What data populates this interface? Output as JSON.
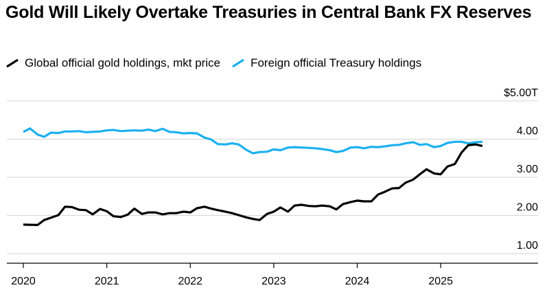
{
  "chart_data": {
    "type": "line",
    "title": "Gold Will Likely Overtake Treasuries in Central Bank FX Reserves",
    "xlabel": "",
    "ylabel": "",
    "x_ticks": [
      "2020",
      "2021",
      "2022",
      "2023",
      "2024",
      "2025"
    ],
    "y_ticks": [
      {
        "value": 5,
        "label": "$5.00T"
      },
      {
        "value": 4,
        "label": "4.00"
      },
      {
        "value": 3,
        "label": "3.00"
      },
      {
        "value": 2,
        "label": "2.00"
      },
      {
        "value": 1,
        "label": "1.00"
      }
    ],
    "xlim": [
      2020.0,
      2026.1
    ],
    "ylim": [
      0.75,
      5.25
    ],
    "grid": true,
    "legend_position": "top-left",
    "series": [
      {
        "name": "Global official gold holdings, mkt price",
        "color": "#000000",
        "x": [
          2020.0,
          2020.17,
          2020.25,
          2020.33,
          2020.42,
          2020.5,
          2020.58,
          2020.67,
          2020.75,
          2020.83,
          2020.92,
          2021.0,
          2021.08,
          2021.17,
          2021.25,
          2021.33,
          2021.42,
          2021.5,
          2021.58,
          2021.67,
          2021.75,
          2021.83,
          2021.92,
          2022.0,
          2022.08,
          2022.17,
          2022.25,
          2022.33,
          2022.42,
          2022.5,
          2022.58,
          2022.67,
          2022.75,
          2022.83,
          2022.92,
          2023.0,
          2023.08,
          2023.17,
          2023.25,
          2023.33,
          2023.42,
          2023.5,
          2023.58,
          2023.67,
          2023.75,
          2023.83,
          2023.92,
          2024.0,
          2024.08,
          2024.17,
          2024.25,
          2024.33,
          2024.42,
          2024.5,
          2024.58,
          2024.67,
          2024.75,
          2024.83,
          2024.92,
          2025.0,
          2025.08,
          2025.17,
          2025.25,
          2025.33,
          2025.42,
          2025.5
        ],
        "values": [
          1.76,
          1.75,
          1.88,
          1.94,
          2.01,
          2.23,
          2.22,
          2.15,
          2.14,
          2.03,
          2.17,
          2.11,
          1.98,
          1.96,
          2.02,
          2.18,
          2.04,
          2.08,
          2.08,
          2.03,
          2.06,
          2.06,
          2.1,
          2.08,
          2.19,
          2.23,
          2.18,
          2.14,
          2.1,
          2.06,
          2.01,
          1.95,
          1.91,
          1.88,
          2.04,
          2.1,
          2.21,
          2.1,
          2.26,
          2.28,
          2.25,
          2.24,
          2.26,
          2.24,
          2.16,
          2.3,
          2.35,
          2.39,
          2.37,
          2.37,
          2.55,
          2.62,
          2.71,
          2.72,
          2.86,
          2.94,
          3.08,
          3.21,
          3.1,
          3.08,
          3.28,
          3.35,
          3.65,
          3.84,
          3.86,
          3.82
        ]
      },
      {
        "name": "Foreign official Treasury holdings",
        "color": "#1bb0f1",
        "x": [
          2020.0,
          2020.08,
          2020.17,
          2020.25,
          2020.33,
          2020.42,
          2020.5,
          2020.58,
          2020.67,
          2020.75,
          2020.83,
          2020.92,
          2021.0,
          2021.08,
          2021.17,
          2021.25,
          2021.33,
          2021.42,
          2021.5,
          2021.58,
          2021.67,
          2021.75,
          2021.83,
          2021.92,
          2022.0,
          2022.08,
          2022.17,
          2022.25,
          2022.33,
          2022.42,
          2022.5,
          2022.58,
          2022.67,
          2022.75,
          2022.83,
          2022.92,
          2023.0,
          2023.08,
          2023.17,
          2023.25,
          2023.33,
          2023.42,
          2023.5,
          2023.58,
          2023.67,
          2023.75,
          2023.83,
          2023.92,
          2024.0,
          2024.08,
          2024.17,
          2024.25,
          2024.33,
          2024.42,
          2024.5,
          2024.58,
          2024.67,
          2024.75,
          2024.83,
          2024.92,
          2025.0,
          2025.08,
          2025.17,
          2025.25,
          2025.33,
          2025.42,
          2025.5
        ],
        "values": [
          4.19,
          4.28,
          4.12,
          4.06,
          4.17,
          4.16,
          4.2,
          4.2,
          4.21,
          4.18,
          4.19,
          4.2,
          4.23,
          4.24,
          4.21,
          4.22,
          4.23,
          4.22,
          4.25,
          4.21,
          4.27,
          4.19,
          4.18,
          4.15,
          4.16,
          4.15,
          4.04,
          3.99,
          3.87,
          3.86,
          3.89,
          3.86,
          3.72,
          3.63,
          3.66,
          3.67,
          3.73,
          3.71,
          3.78,
          3.79,
          3.78,
          3.77,
          3.76,
          3.74,
          3.71,
          3.66,
          3.69,
          3.78,
          3.79,
          3.76,
          3.8,
          3.79,
          3.81,
          3.84,
          3.85,
          3.89,
          3.92,
          3.85,
          3.87,
          3.79,
          3.82,
          3.9,
          3.93,
          3.93,
          3.89,
          3.92,
          3.93
        ]
      }
    ]
  }
}
